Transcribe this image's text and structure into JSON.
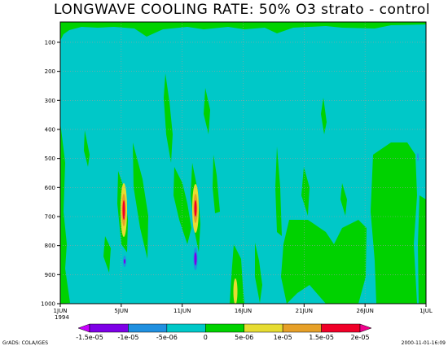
{
  "chart_data": {
    "type": "heatmap",
    "title": "LONGWAVE COOLING RATE: 50% O3 strato - control",
    "x_ticks": [
      "1JUN",
      "5JUN",
      "11JUN",
      "16JUN",
      "21JUN",
      "26JUN",
      "1JUL"
    ],
    "x_tick_days": [
      0,
      5,
      10,
      15,
      20,
      25,
      30
    ],
    "x_year_label": "1994",
    "xlim_days": [
      0,
      30
    ],
    "y_ticks": [
      100,
      200,
      300,
      400,
      500,
      600,
      700,
      800,
      900,
      1000
    ],
    "ylim": [
      1000,
      30
    ],
    "grid": true,
    "colorbar_labels": [
      "-1.5e-05",
      "-1e-05",
      "-5e-06",
      "0",
      "5e-06",
      "1e-05",
      "1.5e-05",
      "2e-05"
    ],
    "colorbar_colors": [
      "#c800ff",
      "#7e00e6",
      "#2090e0",
      "#00c8c8",
      "#00d200",
      "#e6dc32",
      "#e6a028",
      "#f00028",
      "#f0008c"
    ],
    "background_color": "#00c8c8",
    "positive_color": "#00d200",
    "footer_left": "GrADS: COLA/IGES",
    "footer_right": "2000-11-01-16:09"
  }
}
